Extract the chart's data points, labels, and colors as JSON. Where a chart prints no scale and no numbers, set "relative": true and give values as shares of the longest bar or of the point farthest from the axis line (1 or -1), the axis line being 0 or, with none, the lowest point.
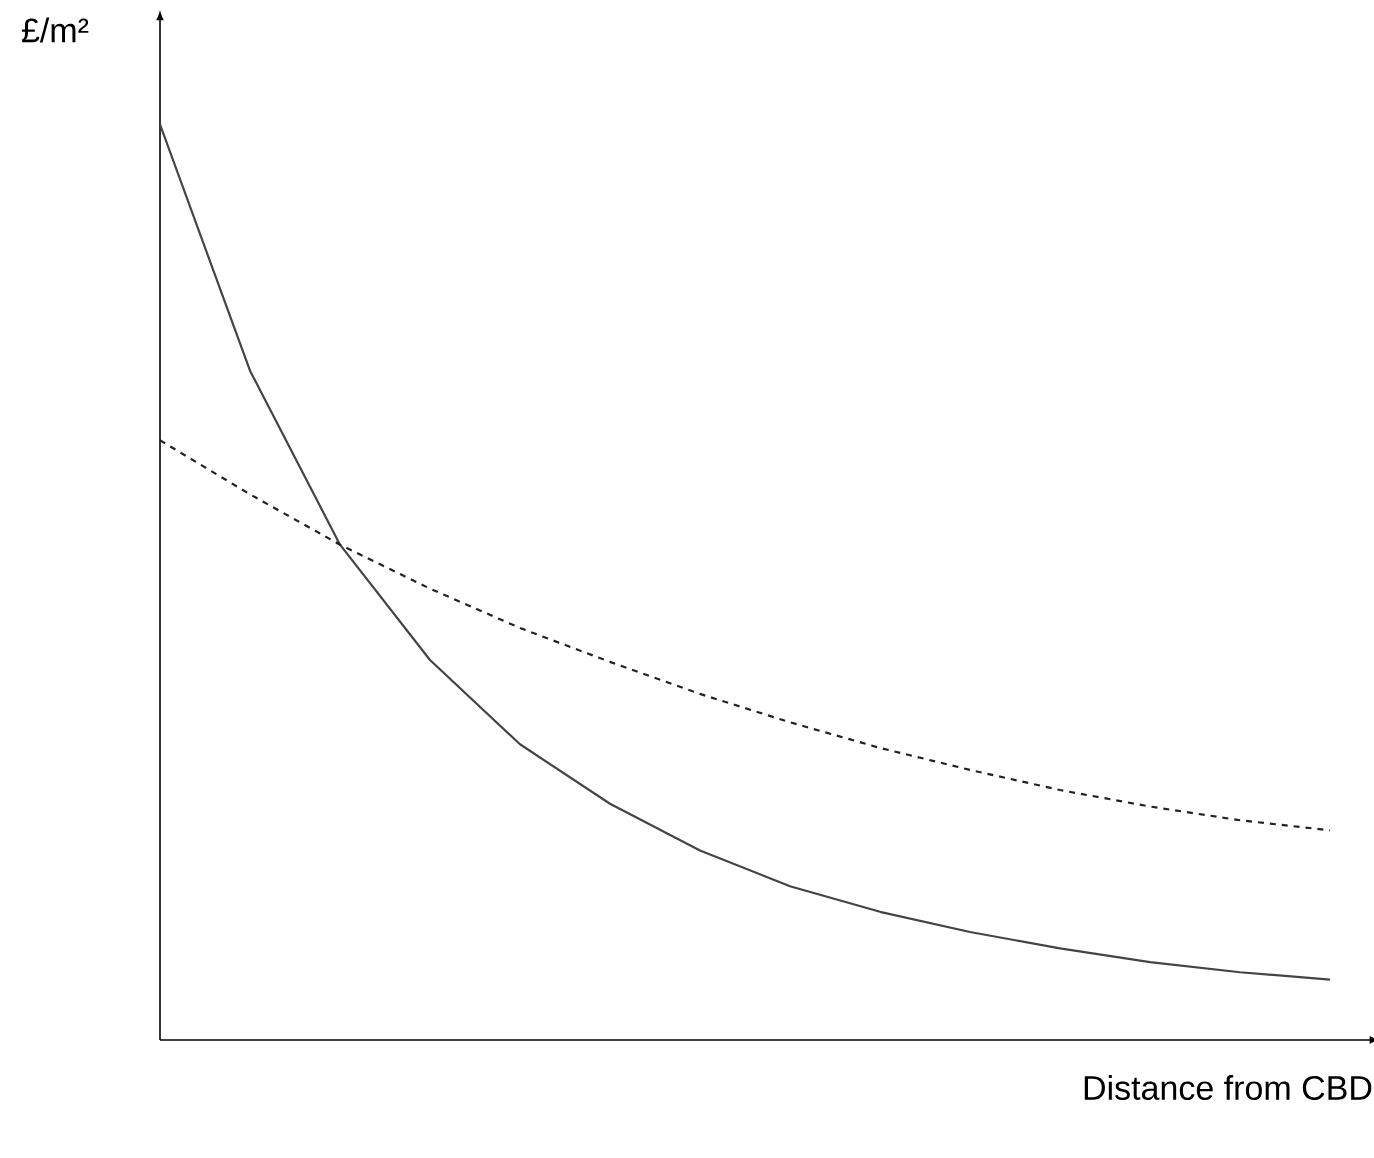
{
  "chart_data": {
    "type": "line",
    "relative": true,
    "xlabel": "Distance from CBD",
    "ylabel": "£/m²",
    "categories": [
      null,
      null,
      null,
      null,
      null,
      null,
      null,
      null,
      null,
      null,
      null,
      null,
      null,
      null
    ],
    "series": [
      {
        "color": "#444444",
        "line_style": "solid",
        "values": [
          1,
          0.731,
          0.541,
          0.415,
          0.323,
          0.258,
          0.207,
          0.168,
          0.14,
          0.118,
          0.1,
          0.085,
          0.074,
          0.066
        ]
      },
      {
        "color": "#222222",
        "line_style": "dashed",
        "values": [
          0.655,
          0.596,
          0.541,
          0.493,
          0.45,
          0.413,
          0.378,
          0.347,
          0.319,
          0.295,
          0.273,
          0.255,
          0.24,
          0.229
        ]
      }
    ]
  }
}
